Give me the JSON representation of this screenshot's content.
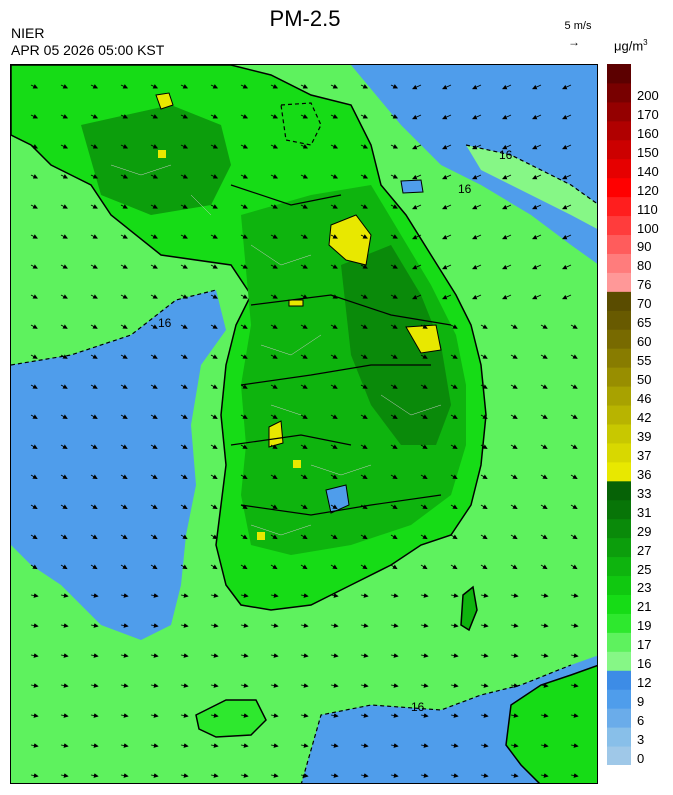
{
  "header": {
    "title": "PM-2.5",
    "org": "NIER",
    "datetime": "APR 05 2026 05:00 KST",
    "wind_ref_label": "5 m/s",
    "wind_ref_arrow": "→",
    "unit_base": "μg/m",
    "unit_exp": "3"
  },
  "legend": {
    "bins": [
      {
        "label": "0",
        "color": "#9fc8e8"
      },
      {
        "label": "3",
        "color": "#88bfe9"
      },
      {
        "label": "6",
        "color": "#6aacea"
      },
      {
        "label": "9",
        "color": "#4f9deb"
      },
      {
        "label": "12",
        "color": "#3d8ce6"
      },
      {
        "label": "16",
        "color": "#86f786"
      },
      {
        "label": "17",
        "color": "#5ef25e"
      },
      {
        "label": "19",
        "color": "#2ee82e"
      },
      {
        "label": "21",
        "color": "#16dc16"
      },
      {
        "label": "23",
        "color": "#10c810"
      },
      {
        "label": "25",
        "color": "#0eb40e"
      },
      {
        "label": "27",
        "color": "#0c9e0c"
      },
      {
        "label": "29",
        "color": "#0a8a0a"
      },
      {
        "label": "31",
        "color": "#087508"
      },
      {
        "label": "33",
        "color": "#066206"
      },
      {
        "label": "36",
        "color": "#e8e800"
      },
      {
        "label": "37",
        "color": "#d8d800"
      },
      {
        "label": "39",
        "color": "#c8c800"
      },
      {
        "label": "42",
        "color": "#b8b400"
      },
      {
        "label": "46",
        "color": "#a8a200"
      },
      {
        "label": "50",
        "color": "#988e00"
      },
      {
        "label": "55",
        "color": "#887c00"
      },
      {
        "label": "60",
        "color": "#786a00"
      },
      {
        "label": "65",
        "color": "#685a00"
      },
      {
        "label": "70",
        "color": "#5a4c00"
      },
      {
        "label": "76",
        "color": "#ff9898"
      },
      {
        "label": "80",
        "color": "#ff7c7c"
      },
      {
        "label": "90",
        "color": "#ff5c5c"
      },
      {
        "label": "100",
        "color": "#ff3c3c"
      },
      {
        "label": "110",
        "color": "#ff1e1e"
      },
      {
        "label": "120",
        "color": "#ff0000"
      },
      {
        "label": "140",
        "color": "#e60000"
      },
      {
        "label": "150",
        "color": "#cc0000"
      },
      {
        "label": "160",
        "color": "#b00000"
      },
      {
        "label": "170",
        "color": "#940000"
      },
      {
        "label": "200",
        "color": "#780000"
      },
      {
        "label": "",
        "color": "#5c0000"
      }
    ]
  },
  "map": {
    "contour_labels": [
      "16",
      "16",
      "16",
      "16"
    ],
    "colors": {
      "sea_low": "#4f9deb",
      "sea_mid": "#3d8ce6",
      "light_green": "#86f786",
      "green": "#2ee82e",
      "mid_green": "#10c810",
      "dark_green": "#0c9e0c",
      "yellow": "#e8e800"
    }
  }
}
